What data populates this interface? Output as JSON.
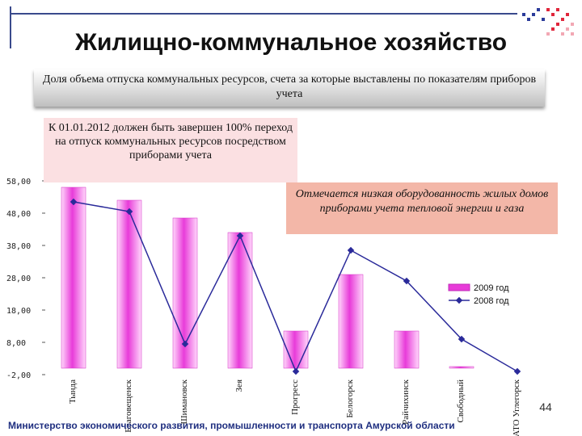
{
  "title": "Жилищно-коммунальное хозяйство",
  "subtitle": "Доля объема отпуска коммунальных ресурсов, счета за которые выставлены по показателям приборов учета",
  "callout_left": "К 01.01.2012 должен быть завершен 100% переход на отпуск коммунальных ресурсов посредством приборами учета",
  "callout_right": "Отмечается низкая оборудованность жилых домов приборами учета тепловой энергии и газа",
  "footer": "Министерство экономического развития, промышленности и транспорта Амурской области",
  "page_number": "44",
  "colors": {
    "bar": "#e83bd9",
    "bar_light": "#ffd6fb",
    "line": "#2a2a9a",
    "frame": "#3a4a8c"
  },
  "chart_data": {
    "type": "bar",
    "categories": [
      "Тында",
      "Благовещенск",
      "Шимановск",
      "Зея",
      "Прогресс",
      "Белогорск",
      "Райчихинск",
      "Свободный",
      "ЗАТО Углегорск"
    ],
    "ylim": [
      -2,
      58
    ],
    "yticks": [
      "-2,00",
      "8,00",
      "18,00",
      "28,00",
      "38,00",
      "48,00",
      "58,00"
    ],
    "ytick_values": [
      -2,
      8,
      18,
      28,
      38,
      48,
      58
    ],
    "series": [
      {
        "name": "2009 год",
        "type": "bar",
        "values": [
          56,
          52,
          46.5,
          42,
          11.5,
          29,
          11.5,
          0.5,
          0
        ]
      },
      {
        "name": "2008 год",
        "type": "line",
        "values": [
          51.5,
          48.5,
          7.5,
          41,
          -1,
          36.5,
          27,
          9,
          -1
        ]
      }
    ]
  }
}
